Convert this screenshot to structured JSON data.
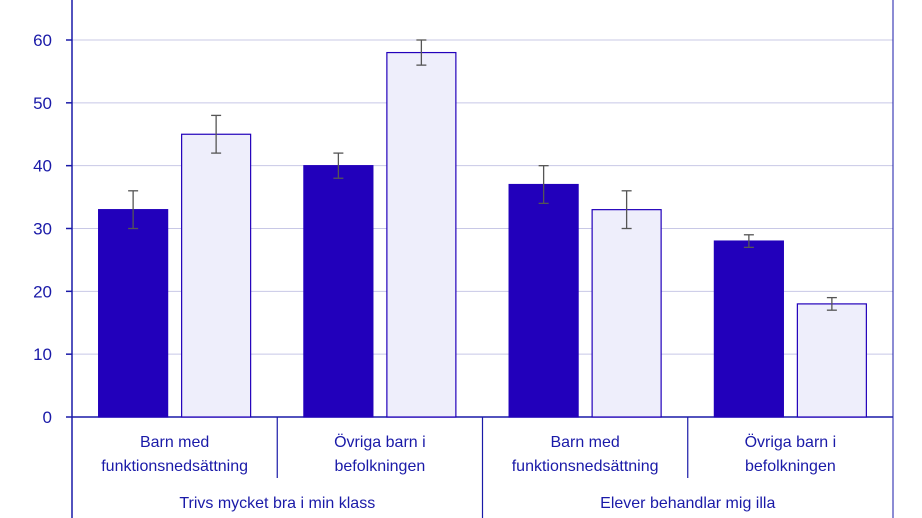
{
  "chart_data": {
    "type": "bar",
    "groups": [
      {
        "label": "Trivs mycket bra i min klass",
        "categories": [
          {
            "label_lines": [
              "Barn med",
              "funktionsnedsättning"
            ],
            "values": [
              33,
              45
            ],
            "errors": [
              [
                30,
                36
              ],
              [
                42,
                48
              ]
            ]
          },
          {
            "label_lines": [
              "Övriga barn i",
              "befolkningen"
            ],
            "values": [
              40,
              58
            ],
            "errors": [
              [
                38,
                42
              ],
              [
                56,
                60
              ]
            ]
          }
        ]
      },
      {
        "label": "Elever behandlar mig illa",
        "categories": [
          {
            "label_lines": [
              "Barn med",
              "funktionsnedsättning"
            ],
            "values": [
              37,
              33
            ],
            "errors": [
              [
                34,
                40
              ],
              [
                30,
                36
              ]
            ]
          },
          {
            "label_lines": [
              "Övriga barn i",
              "befolkningen"
            ],
            "values": [
              28,
              18
            ],
            "errors": [
              [
                27,
                29
              ],
              [
                17,
                19
              ]
            ]
          }
        ]
      }
    ],
    "series_colors": [
      "#2200bb",
      "#eeeefb"
    ],
    "bar_stroke": "#2200bb",
    "error_color": "#555555",
    "grid_color": "#c8c8e6",
    "axis_color": "#1a1aa8",
    "yticks": [
      0,
      10,
      20,
      30,
      40,
      50,
      60
    ],
    "ylim": [
      0,
      60
    ],
    "grid": true
  }
}
